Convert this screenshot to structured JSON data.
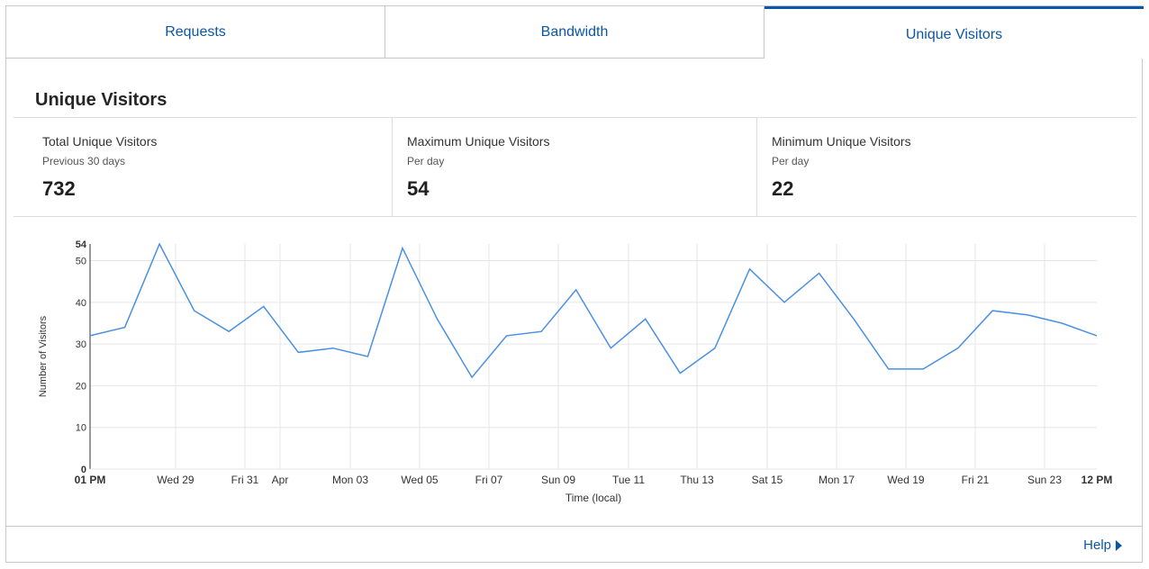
{
  "tabs": [
    {
      "label": "Requests",
      "active": false
    },
    {
      "label": "Bandwidth",
      "active": false
    },
    {
      "label": "Unique Visitors",
      "active": true
    }
  ],
  "section_title": "Unique Visitors",
  "stats": [
    {
      "label": "Total Unique Visitors",
      "sub": "Previous 30 days",
      "value": "732"
    },
    {
      "label": "Maximum Unique Visitors",
      "sub": "Per day",
      "value": "54"
    },
    {
      "label": "Minimum Unique Visitors",
      "sub": "Per day",
      "value": "22"
    }
  ],
  "chart_data": {
    "type": "line",
    "xlabel": "Time (local)",
    "ylabel": "Number of Visitors",
    "ylim": [
      0,
      54
    ],
    "yticks": [
      "0",
      "10",
      "20",
      "30",
      "40",
      "50",
      "54"
    ],
    "xticks": [
      "01 PM",
      "Wed 29",
      "Fri 31",
      "Apr",
      "Mon 03",
      "Wed 05",
      "Fri 07",
      "Sun 09",
      "Tue 11",
      "Thu 13",
      "Sat 15",
      "Mon 17",
      "Wed 19",
      "Fri 21",
      "Sun 23",
      "12 PM"
    ],
    "grid": true,
    "line_color": "#4a90e2",
    "series": [
      {
        "values": [
          32,
          34,
          54,
          38,
          33,
          39,
          28,
          29,
          27,
          53,
          36,
          22,
          32,
          33,
          43,
          29,
          36,
          23,
          29,
          48,
          40,
          47,
          36,
          24,
          24,
          29,
          38,
          37,
          35,
          32
        ]
      }
    ]
  },
  "footer": {
    "help_label": "Help"
  }
}
